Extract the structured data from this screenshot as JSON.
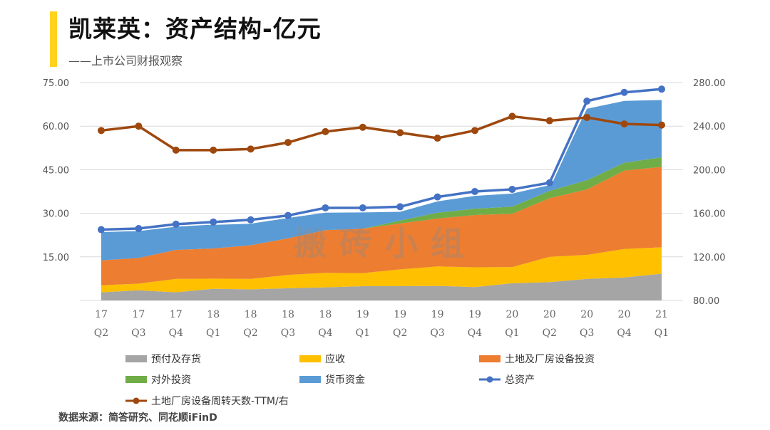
{
  "header": {
    "title": "凯莱英：资产结构-亿元",
    "subtitle": "——上市公司财报观察",
    "source": "数据来源：简答研究、同花顺iFinD",
    "accent_color": "#FFD21F"
  },
  "watermark": "搬砖小组",
  "chart_data": {
    "type": "area",
    "title": "",
    "x_top": [
      "17",
      "17",
      "17",
      "18",
      "18",
      "18",
      "18",
      "19",
      "19",
      "19",
      "19",
      "20",
      "20",
      "20",
      "20",
      "21"
    ],
    "x_bottom": [
      "Q2",
      "Q3",
      "Q4",
      "Q1",
      "Q2",
      "Q3",
      "Q4",
      "Q1",
      "Q2",
      "Q3",
      "Q4",
      "Q1",
      "Q2",
      "Q3",
      "Q4",
      "Q1"
    ],
    "left_axis": {
      "min": 0,
      "max": 75,
      "ticks": [
        "",
        "15.00",
        "30.00",
        "45.00",
        "60.00",
        "75.00"
      ]
    },
    "right_axis": {
      "min": 80,
      "max": 280,
      "ticks": [
        "80.00",
        "120.00",
        "160.00",
        "200.00",
        "240.00",
        "280.00"
      ]
    },
    "grid": "horizontal",
    "legend_position": "bottom",
    "stacked_series": [
      {
        "name": "预付及存货",
        "color": "#A5A5A5",
        "values": [
          2.8,
          3.5,
          2.8,
          4.0,
          3.8,
          4.2,
          4.5,
          4.9,
          4.9,
          5.0,
          4.6,
          5.9,
          6.3,
          7.4,
          7.9,
          9.2
        ]
      },
      {
        "name": "应收",
        "color": "#FFC000",
        "values": [
          2.4,
          2.3,
          4.6,
          3.5,
          3.6,
          4.6,
          5.0,
          4.5,
          5.8,
          6.7,
          6.8,
          5.6,
          8.7,
          8.3,
          9.8,
          9.1
        ]
      },
      {
        "name": "土地及厂房设备投资",
        "color": "#ED7D31",
        "values": [
          8.6,
          8.8,
          10.0,
          10.4,
          11.6,
          12.6,
          14.7,
          15.3,
          15.8,
          16.5,
          18.0,
          18.3,
          20.2,
          22.5,
          27.0,
          27.7
        ]
      },
      {
        "name": "对外投资",
        "color": "#70AD47",
        "values": [
          0,
          0,
          0,
          0,
          0,
          0,
          0,
          0,
          1.0,
          2.0,
          2.2,
          2.5,
          2.5,
          3.2,
          2.7,
          3.3
        ]
      },
      {
        "name": "货币资金",
        "color": "#5B9BD5",
        "values": [
          10.2,
          9.9,
          8.5,
          8.1,
          7.4,
          7.0,
          6.0,
          5.6,
          3.0,
          3.9,
          4.4,
          4.5,
          2.0,
          24.6,
          21.3,
          19.7
        ]
      }
    ],
    "line_series": [
      {
        "name": "总资产",
        "color": "#4472C4",
        "axis": "right",
        "values": [
          145,
          146,
          150,
          152,
          154,
          158,
          165,
          165,
          166,
          175,
          180,
          182,
          188,
          263,
          271,
          274
        ]
      },
      {
        "name": "土地厂房设备周转天数-TTM/右",
        "color": "#9E480E",
        "axis": "right",
        "values": [
          236,
          240,
          218,
          218,
          219,
          225,
          235,
          239,
          234,
          229,
          236,
          249,
          245,
          248,
          242,
          241
        ]
      }
    ]
  }
}
